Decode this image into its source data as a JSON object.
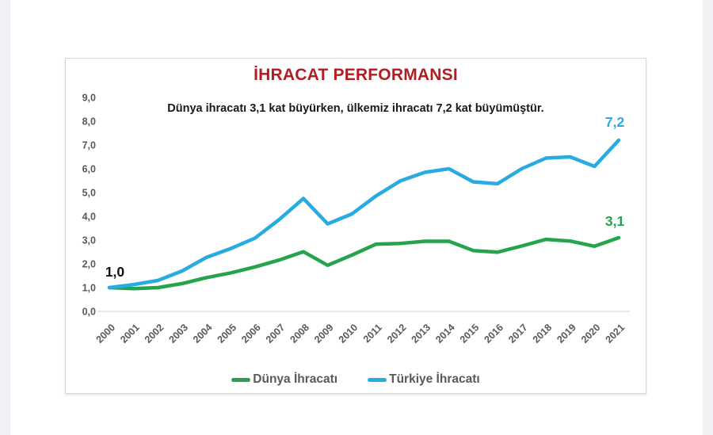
{
  "page": {
    "background": "#ffffff",
    "side_strip_color": "#f0f1f4"
  },
  "card": {
    "background": "#ffffff",
    "border_color": "#d9d9d9"
  },
  "chart_data": {
    "type": "line",
    "title": "İHRACAT PERFORMANSI",
    "title_color": "#b01e24",
    "subtitle": "Dünya ihracatı 3,1 kat büyürken, ülkemiz ihracatı 7,2 kat büyümüştür.",
    "subtitle_color": "#1a1a1a",
    "categories": [
      "2000",
      "2001",
      "2002",
      "2003",
      "2004",
      "2005",
      "2006",
      "2007",
      "2008",
      "2009",
      "2010",
      "2011",
      "2012",
      "2013",
      "2014",
      "2015",
      "2016",
      "2017",
      "2018",
      "2019",
      "2020",
      "2021"
    ],
    "series": [
      {
        "name": "Dünya İhracatı",
        "color": "#26a44d",
        "values": [
          1.0,
          0.96,
          1.0,
          1.17,
          1.42,
          1.62,
          1.87,
          2.16,
          2.51,
          1.94,
          2.37,
          2.83,
          2.86,
          2.95,
          2.95,
          2.56,
          2.49,
          2.75,
          3.03,
          2.96,
          2.74,
          3.1
        ],
        "end_label": "3,1"
      },
      {
        "name": "Türkiye İhracatı",
        "color": "#29abe2",
        "values": [
          1.0,
          1.13,
          1.3,
          1.7,
          2.27,
          2.64,
          3.08,
          3.86,
          4.75,
          3.68,
          4.1,
          4.86,
          5.49,
          5.85,
          6.0,
          5.45,
          5.37,
          6.0,
          6.45,
          6.5,
          6.1,
          7.2
        ],
        "end_label": "7,2"
      }
    ],
    "start_label": "1,0",
    "start_label_color": "#111111",
    "ylim": [
      0,
      9
    ],
    "ytick_step": 1,
    "ytick_labels": [
      "0,0",
      "1,0",
      "2,0",
      "3,0",
      "4,0",
      "5,0",
      "6,0",
      "7,0",
      "8,0",
      "9,0"
    ],
    "grid": false,
    "legend_position": "bottom",
    "axis_text_color": "#595959",
    "axis_line_color": "#d9d9d9"
  }
}
